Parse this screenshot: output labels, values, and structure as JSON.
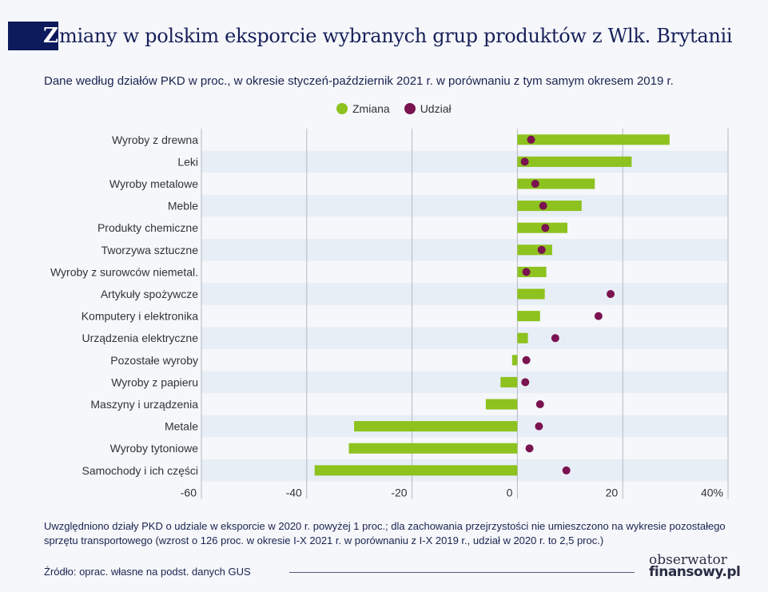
{
  "title_initial": "Z",
  "title_rest": "miany w polskim eksporcie wybranych grup produktów z Wlk. Brytanii",
  "subtitle": "Dane według działów PKD w proc., w okresie styczeń-październik 2021 r. w porównaniu z tym samym okresem 2019 r.",
  "note": "Uwzględniono działy PKD o udziale w eksporcie w 2020 r. powyżej 1 proc.; dla zachowania przejrzystości nie umieszczono na wykresie pozostałego sprzętu transportowego (wzrost o 126 proc. w okresie I-X 2021 r. w porównaniu z I-X 2019 r., udział w 2020 r. to 2,5 proc.)",
  "source": "Źródło: oprac. własne na podst. danych GUS",
  "logo": {
    "line1": "obserwator",
    "line2": "finansowy.pl"
  },
  "colors": {
    "zmiana": "#8dc21f",
    "udzial": "#7a1350",
    "stripe": "#e8eef6",
    "grid": "#b5b8c2"
  },
  "chart_data": {
    "type": "bar",
    "orientation": "horizontal",
    "categories": [
      "Wyroby z drewna",
      "Leki",
      "Wyroby metalowe",
      "Meble",
      "Produkty chemiczne",
      "Tworzywa sztuczne",
      "Wyroby z surowców niemetal.",
      "Artykuły spożywcze",
      "Komputery i elektronika",
      "Urządzenia elektryczne",
      "Pozostałe wyroby",
      "Wyroby z papieru",
      "Maszyny i urządzenia",
      "Metale",
      "Wyroby tytoniowe",
      "Samochody i ich części"
    ],
    "series": [
      {
        "name": "Zmiana",
        "mark": "bar",
        "values": [
          28.9,
          21.7,
          14.7,
          12.2,
          9.5,
          6.6,
          5.5,
          5.2,
          4.3,
          2.0,
          -1.0,
          -3.2,
          -6.0,
          -31.0,
          -32.0,
          -38.5
        ]
      },
      {
        "name": "Udział",
        "mark": "dot",
        "values": [
          2.6,
          1.4,
          3.4,
          4.9,
          5.3,
          4.6,
          1.7,
          17.7,
          15.4,
          7.2,
          1.7,
          1.5,
          4.3,
          4.1,
          2.3,
          9.3
        ]
      }
    ],
    "xlim": [
      -60,
      40
    ],
    "xticks": [
      -60,
      -40,
      -20,
      0,
      20,
      40
    ],
    "xtick_labels": [
      "-60",
      "-40",
      "-20",
      "0",
      "20",
      "40%"
    ],
    "grid": "vertical",
    "legend": "top-center"
  }
}
